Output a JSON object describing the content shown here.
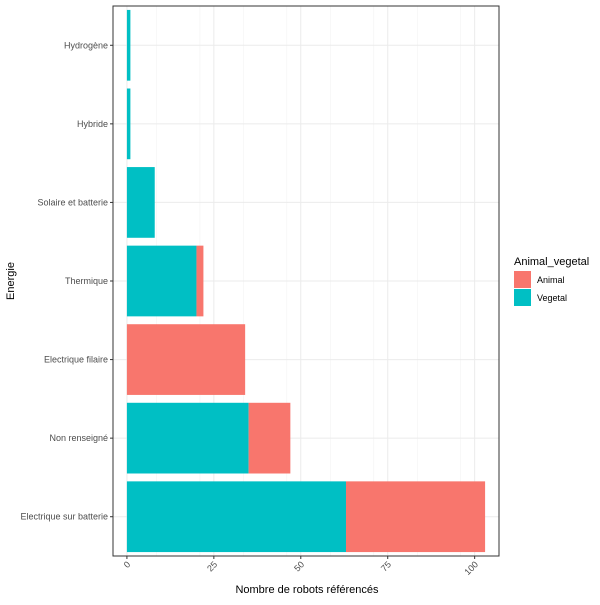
{
  "chart_data": {
    "type": "bar",
    "orientation": "horizontal",
    "stacked": true,
    "title": "",
    "xlabel": "Nombre de robots référencés",
    "ylabel": "Energie",
    "categories": [
      "Electrique sur batterie",
      "Non renseigné",
      "Electrique filaire",
      "Thermique",
      "Solaire et batterie",
      "Hybride",
      "Hydrogène"
    ],
    "series": [
      {
        "name": "Vegetal",
        "color": "#00BFC4",
        "values": [
          63,
          35,
          0,
          20,
          8,
          1,
          1
        ]
      },
      {
        "name": "Animal",
        "color": "#F8766D",
        "values": [
          40,
          12,
          34,
          2,
          0,
          0,
          0
        ]
      }
    ],
    "xlim": [
      -4,
      107
    ],
    "xticks": [
      0,
      25,
      50,
      75,
      100
    ],
    "xtick_labels": [
      "0",
      "25",
      "50",
      "75",
      "100"
    ],
    "grid": true,
    "legend": {
      "title": "Animal_vegetal",
      "position": "right",
      "entries": [
        {
          "label": "Animal",
          "color": "#F8766D"
        },
        {
          "label": "Vegetal",
          "color": "#00BFC4"
        }
      ]
    }
  }
}
